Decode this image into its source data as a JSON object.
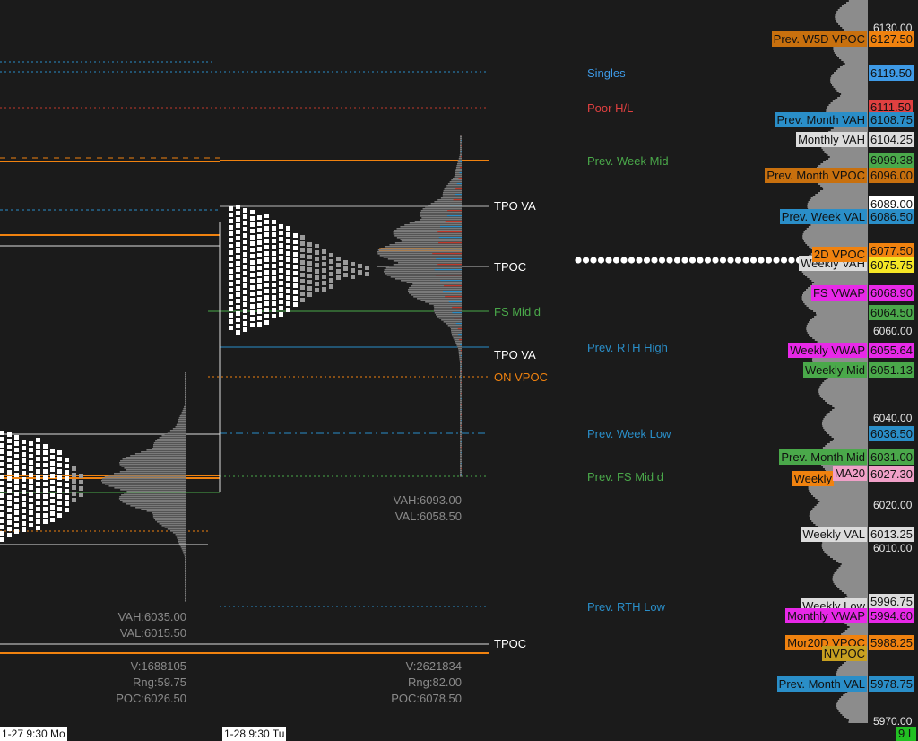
{
  "price_axis": {
    "ticks": [
      "6130.00",
      "6060.00",
      "6040.00",
      "6020.00",
      "6010.00",
      "5970.00"
    ],
    "price_tags": [
      {
        "value": "6127.50",
        "bg": "#f0820f",
        "fg": "#111111"
      },
      {
        "value": "6119.50",
        "bg": "#3e9ae6",
        "fg": "#111111"
      },
      {
        "value": "6111.50",
        "bg": "#e04040",
        "fg": "#111111"
      },
      {
        "value": "6108.75",
        "bg": "#2a8ec8",
        "fg": "#111111"
      },
      {
        "value": "6104.25",
        "bg": "#dcdcdc",
        "fg": "#111111"
      },
      {
        "value": "6099.38",
        "bg": "#4aa84a",
        "fg": "#111111"
      },
      {
        "value": "6096.00",
        "bg": "#c8700e",
        "fg": "#111111"
      },
      {
        "value": "6089.00",
        "bg": "#ffffff",
        "fg": "#111111"
      },
      {
        "value": "6086.50",
        "bg": "#2a8ec8",
        "fg": "#111111"
      },
      {
        "value": "6077.50",
        "bg": "#f0820f",
        "fg": "#111111"
      },
      {
        "value": "6075.75",
        "bg": "#f5e625",
        "fg": "#111111"
      },
      {
        "value": "6068.90",
        "bg": "#e828e8",
        "fg": "#111111"
      },
      {
        "value": "6064.50",
        "bg": "#4aa84a",
        "fg": "#111111"
      },
      {
        "value": "6055.64",
        "bg": "#e828e8",
        "fg": "#111111"
      },
      {
        "value": "6051.13",
        "bg": "#4aa84a",
        "fg": "#111111"
      },
      {
        "value": "6036.50",
        "bg": "#2a8ec8",
        "fg": "#111111"
      },
      {
        "value": "6031.00",
        "bg": "#4aa84a",
        "fg": "#111111"
      },
      {
        "value": "6027.30",
        "bg": "#f0a0c8",
        "fg": "#111111"
      },
      {
        "value": "6013.25",
        "bg": "#dcdcdc",
        "fg": "#111111"
      },
      {
        "value": "5996.75",
        "bg": "#dcdcdc",
        "fg": "#111111"
      },
      {
        "value": "5994.60",
        "bg": "#e828e8",
        "fg": "#111111"
      },
      {
        "value": "5988.25",
        "bg": "#f0820f",
        "fg": "#111111"
      },
      {
        "value": "5978.75",
        "bg": "#2a8ec8",
        "fg": "#111111"
      }
    ],
    "last_price": "9 L"
  },
  "level_tags": [
    {
      "text": "Prev. W5D VPOC",
      "bg": "#c8700e",
      "fg": "#111111"
    },
    {
      "text": "Prev. Month VAH",
      "bg": "#2a8ec8",
      "fg": "#111111"
    },
    {
      "text": "Monthly VAH",
      "bg": "#dcdcdc",
      "fg": "#111111"
    },
    {
      "text": "Prev. Month VPOC",
      "bg": "#c8700e",
      "fg": "#111111"
    },
    {
      "text": "Prev. Week VAL",
      "bg": "#2a8ec8",
      "fg": "#111111"
    },
    {
      "text": "Weekly VAH",
      "bg": "#dcdcdc",
      "fg": "#111111"
    },
    {
      "text": "2D VPOC",
      "bg": "#f0820f",
      "fg": "#111111"
    },
    {
      "text": "FS VWAP",
      "bg": "#e828e8",
      "fg": "#111111"
    },
    {
      "text": "Weekly VWAP",
      "bg": "#e828e8",
      "fg": "#111111"
    },
    {
      "text": "Weekly Mid",
      "bg": "#4aa84a",
      "fg": "#111111"
    },
    {
      "text": "Prev. Month Mid",
      "bg": "#4aa84a",
      "fg": "#111111"
    },
    {
      "text": "Weekly",
      "bg": "#f0820f",
      "fg": "#111111"
    },
    {
      "text": "MA20",
      "bg": "#f0a0c8",
      "fg": "#111111"
    },
    {
      "text": "Weekly VAL",
      "bg": "#dcdcdc",
      "fg": "#111111"
    },
    {
      "text": "Weekly Low",
      "bg": "#dcdcdc",
      "fg": "#111111"
    },
    {
      "text": "Monthly VWAP",
      "bg": "#e828e8",
      "fg": "#111111"
    },
    {
      "text": "Mor20D VPOC",
      "bg": "#f0820f",
      "fg": "#111111"
    },
    {
      "text": "NVPOC",
      "bg": "#c8a020",
      "fg": "#111111"
    },
    {
      "text": "Prev. Month VAL",
      "bg": "#2a8ec8",
      "fg": "#111111"
    }
  ],
  "level_labels": [
    {
      "text": "Singles",
      "color": "#3e9ae6"
    },
    {
      "text": "Poor H/L",
      "color": "#e04040"
    },
    {
      "text": "Prev. Week Mid",
      "color": "#4aa84a"
    },
    {
      "text": "Prev. RTH High",
      "color": "#2a8ec8"
    },
    {
      "text": "Prev. Week Low",
      "color": "#2a8ec8"
    },
    {
      "text": "Prev. FS Mid d",
      "color": "#4aa84a"
    },
    {
      "text": "Prev. RTH Low",
      "color": "#2a8ec8"
    },
    {
      "text": "TPO VA",
      "color": "#ffffff"
    },
    {
      "text": "TPOC",
      "color": "#ffffff"
    },
    {
      "text": "FS Mid d",
      "color": "#4aa84a"
    },
    {
      "text": "TPO VA",
      "color": "#ffffff"
    },
    {
      "text": "ON VPOC",
      "color": "#f0820f"
    },
    {
      "text": "TPOC",
      "color": "#ffffff"
    }
  ],
  "sessions": [
    {
      "vah": "VAH:6035.00",
      "val": "VAL:6015.50",
      "v": "V:1688105",
      "rng": "Rng:59.75",
      "poc": "POC:6026.50",
      "date_label": "1-27  9:30 Mo"
    },
    {
      "vah": "VAH:6093.00",
      "val": "VAL:6058.50",
      "v": "V:2621834",
      "rng": "Rng:82.00",
      "poc": "POC:6078.50",
      "date_label": "1-28  9:30 Tu"
    }
  ],
  "colors": {
    "background": "#1b1b1b",
    "accent_orange": "#f0820f",
    "blue": "#2a8ec8",
    "green": "#4aa84a",
    "magenta": "#e828e8",
    "red": "#e04040"
  }
}
